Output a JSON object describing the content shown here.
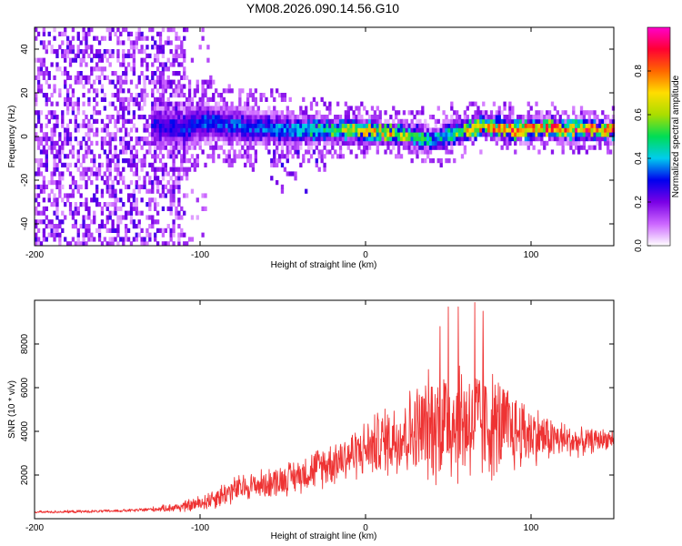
{
  "title": "YM08.2026.090.14.56.G10",
  "colors": {
    "snr_line": "#ee3333",
    "colormap": [
      "#ffffff",
      "#cc66ff",
      "#7a00e6",
      "#0000ee",
      "#00ccee",
      "#00dd55",
      "#aadd00",
      "#ffdd00",
      "#ff6600",
      "#ff0033",
      "#ff00cc"
    ]
  },
  "chart_data": [
    {
      "type": "heatmap",
      "title": "YM08.2026.090.14.56.G10",
      "xlabel": "Height of straight line (km)",
      "ylabel": "Frequency (Hz)",
      "xlim": [
        -200,
        150
      ],
      "ylim": [
        -50,
        50
      ],
      "xticks": [
        -200,
        -100,
        0,
        100
      ],
      "xtick_labels": [
        "-200",
        "-100",
        "0",
        "100"
      ],
      "yticks": [
        -40,
        -20,
        0,
        20,
        40
      ],
      "ytick_labels": [
        "-40",
        "-20",
        "0",
        "20",
        "40"
      ],
      "colorbar": {
        "label": "Normalized spectral amplitude",
        "range": [
          0,
          1
        ],
        "ticks": [
          0.0,
          0.2,
          0.4,
          0.6,
          0.8
        ],
        "tick_labels": [
          "0.0",
          "0.2",
          "0.4",
          "0.6",
          "0.8"
        ]
      },
      "noise_region": {
        "x_range": [
          -200,
          -110
        ],
        "amplitude_range": [
          0.05,
          0.25
        ]
      },
      "ridge": {
        "x": [
          -125,
          -110,
          -100,
          -90,
          -80,
          -70,
          -60,
          -50,
          -40,
          -30,
          -20,
          -10,
          0,
          10,
          20,
          30,
          40,
          50,
          60,
          70,
          80,
          90,
          100,
          110,
          120,
          130,
          140,
          150
        ],
        "frequency": [
          4,
          3,
          6,
          5,
          4,
          3,
          3,
          2,
          2,
          2,
          2,
          2,
          2,
          1,
          0,
          -1,
          -3,
          0,
          2,
          4,
          3,
          2,
          3,
          3,
          2,
          3,
          2,
          2
        ],
        "amplitude": [
          0.3,
          0.32,
          0.35,
          0.35,
          0.36,
          0.37,
          0.38,
          0.4,
          0.45,
          0.5,
          0.6,
          0.7,
          0.78,
          0.82,
          0.72,
          0.6,
          0.45,
          0.5,
          0.7,
          0.82,
          0.85,
          0.85,
          0.82,
          0.85,
          0.88,
          0.88,
          0.9,
          0.9
        ],
        "spread_hz": [
          12,
          12,
          12,
          10,
          10,
          10,
          9,
          9,
          8,
          8,
          7,
          7,
          6,
          6,
          6,
          7,
          7,
          7,
          6,
          6,
          6,
          6,
          6,
          6,
          6,
          6,
          5,
          5
        ]
      }
    },
    {
      "type": "line",
      "xlabel": "Height of straight line (km)",
      "ylabel": "SNR (10 * v/v)",
      "xlim": [
        -200,
        150
      ],
      "ylim": [
        0,
        10000
      ],
      "xticks": [
        -200,
        -100,
        0,
        100
      ],
      "xtick_labels": [
        "-200",
        "-100",
        "0",
        "100"
      ],
      "yticks": [
        2000,
        4000,
        6000,
        8000
      ],
      "ytick_labels": [
        "2000",
        "4000",
        "6000",
        "8000"
      ],
      "series": [
        {
          "name": "SNR",
          "x": [
            -200,
            -180,
            -160,
            -140,
            -125,
            -110,
            -100,
            -90,
            -80,
            -70,
            -60,
            -50,
            -40,
            -30,
            -20,
            -10,
            0,
            10,
            20,
            30,
            40,
            50,
            60,
            70,
            80,
            90,
            100,
            110,
            120,
            130,
            140,
            150
          ],
          "center": [
            300,
            320,
            340,
            380,
            450,
            550,
            700,
            1000,
            1300,
            1500,
            1600,
            1800,
            2000,
            2300,
            2600,
            2900,
            3200,
            3500,
            3800,
            4000,
            4300,
            4500,
            4500,
            4400,
            4200,
            4000,
            3900,
            3700,
            3600,
            3500,
            3600,
            3700
          ],
          "spread": [
            60,
            60,
            60,
            70,
            120,
            250,
            350,
            500,
            600,
            600,
            650,
            700,
            750,
            900,
            1000,
            1100,
            1200,
            1500,
            1800,
            2000,
            2500,
            2800,
            2800,
            2600,
            2300,
            1800,
            1400,
            1000,
            800,
            600,
            500,
            400
          ],
          "peaks": [
            {
              "x": 66,
              "y": 9900
            },
            {
              "x": 50,
              "y": 9700
            },
            {
              "x": 56,
              "y": 9700
            },
            {
              "x": 71,
              "y": 9500
            },
            {
              "x": 45,
              "y": 8800
            }
          ]
        }
      ]
    }
  ]
}
